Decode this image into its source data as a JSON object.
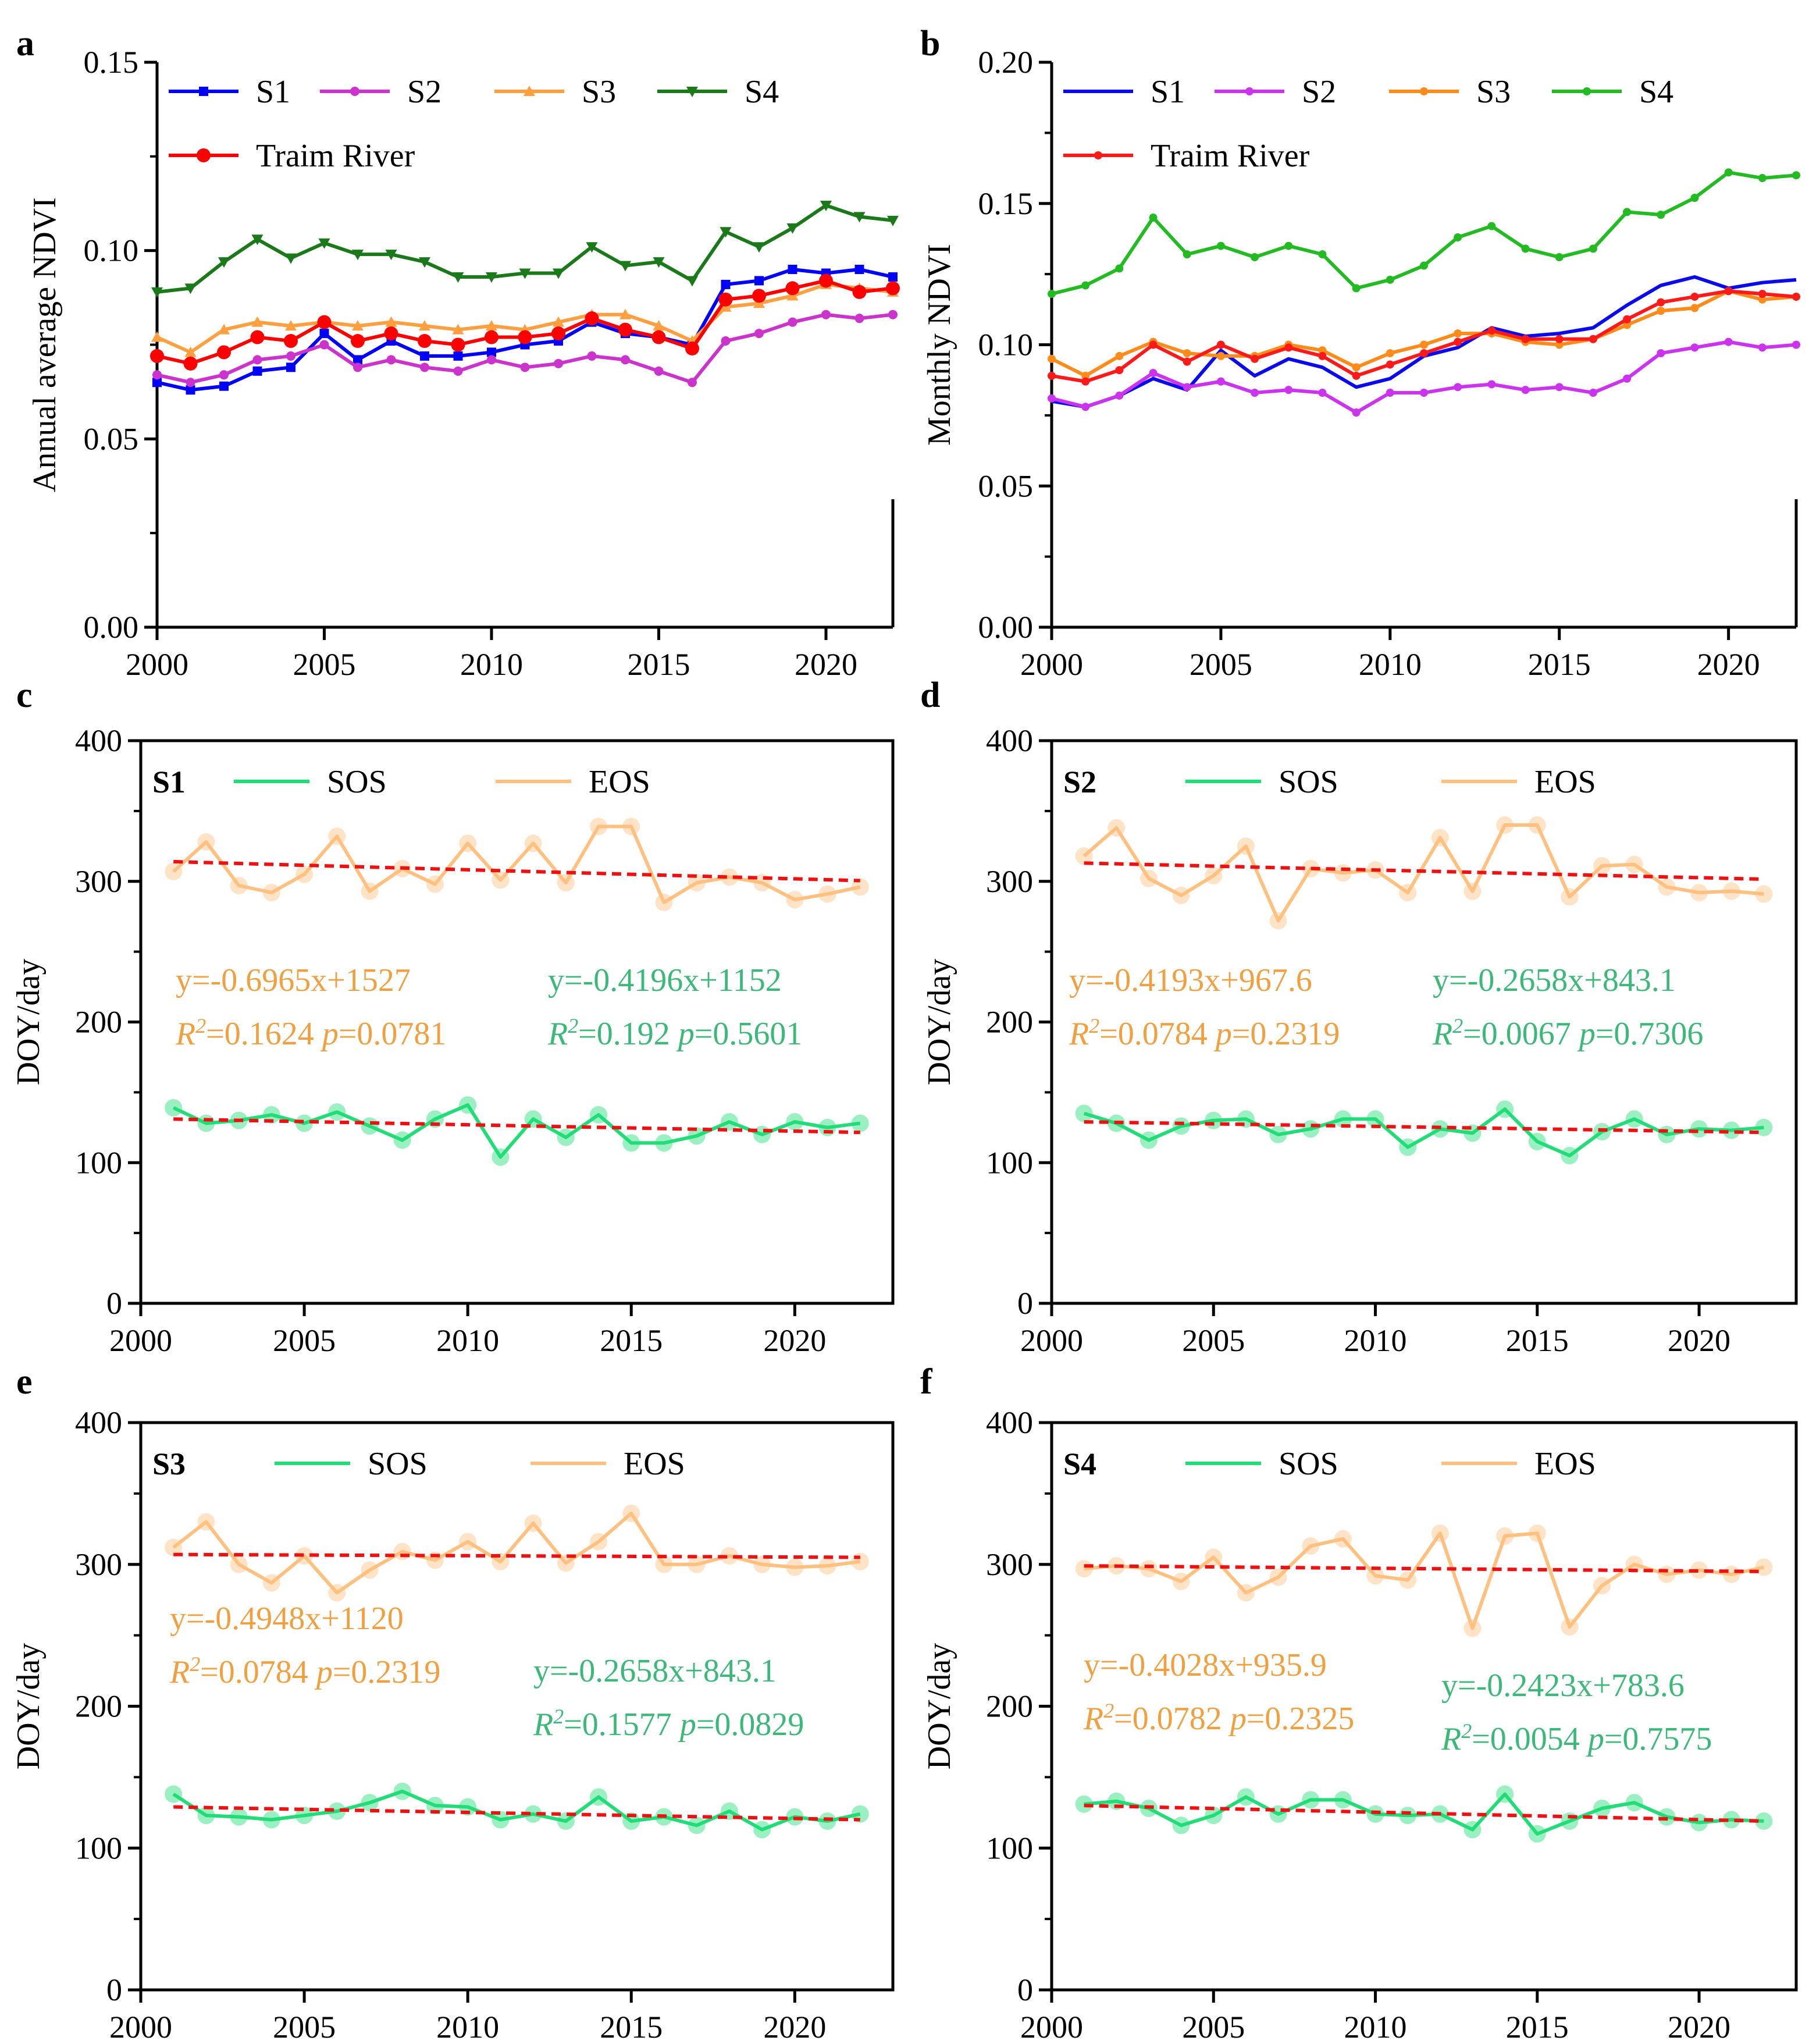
{
  "figure": {
    "panel_letters": [
      "a",
      "b",
      "c",
      "d",
      "e",
      "f"
    ]
  },
  "chart_data": [
    {
      "id": "a",
      "type": "line",
      "ylabel": "Annual average NDVI",
      "xlabel": "",
      "xlim": [
        2000,
        2022
      ],
      "ylim": [
        0.0,
        0.15
      ],
      "xticks": [
        2000,
        2005,
        2010,
        2015,
        2020
      ],
      "yticks": [
        0.0,
        0.05,
        0.1,
        0.15
      ],
      "ytick_labels": [
        "0.00",
        "0.05",
        "0.10",
        "0.15"
      ],
      "x": [
        2000,
        2001,
        2002,
        2003,
        2004,
        2005,
        2006,
        2007,
        2008,
        2009,
        2010,
        2011,
        2012,
        2013,
        2014,
        2015,
        2016,
        2017,
        2018,
        2019,
        2020,
        2021,
        2022
      ],
      "series": [
        {
          "name": "S1",
          "color": "#0000ff",
          "marker": "square",
          "values": [
            0.065,
            0.063,
            0.064,
            0.068,
            0.069,
            0.078,
            0.071,
            0.076,
            0.072,
            0.072,
            0.073,
            0.075,
            0.076,
            0.081,
            0.078,
            0.077,
            0.075,
            0.091,
            0.092,
            0.095,
            0.094,
            0.095,
            0.093
          ]
        },
        {
          "name": "S2",
          "color": "#cc33cc",
          "marker": "circle",
          "values": [
            0.067,
            0.065,
            0.067,
            0.071,
            0.072,
            0.075,
            0.069,
            0.071,
            0.069,
            0.068,
            0.071,
            0.069,
            0.07,
            0.072,
            0.071,
            0.068,
            0.065,
            0.076,
            0.078,
            0.081,
            0.083,
            0.082,
            0.083
          ]
        },
        {
          "name": "S3",
          "color": "#ffa040",
          "marker": "triangle-up",
          "values": [
            0.077,
            0.073,
            0.079,
            0.081,
            0.08,
            0.081,
            0.08,
            0.081,
            0.08,
            0.079,
            0.08,
            0.079,
            0.081,
            0.083,
            0.083,
            0.08,
            0.076,
            0.085,
            0.086,
            0.088,
            0.091,
            0.09,
            0.089
          ]
        },
        {
          "name": "S4",
          "color": "#1a7a1a",
          "marker": "triangle-down",
          "values": [
            0.089,
            0.09,
            0.097,
            0.103,
            0.098,
            0.102,
            0.099,
            0.099,
            0.097,
            0.093,
            0.093,
            0.094,
            0.094,
            0.101,
            0.096,
            0.097,
            0.092,
            0.105,
            0.101,
            0.106,
            0.112,
            0.109,
            0.108
          ]
        },
        {
          "name": "Traim River",
          "color": "#ff0000",
          "marker": "circle-big",
          "values": [
            0.072,
            0.07,
            0.073,
            0.077,
            0.076,
            0.081,
            0.076,
            0.078,
            0.076,
            0.075,
            0.077,
            0.077,
            0.078,
            0.082,
            0.079,
            0.077,
            0.074,
            0.087,
            0.088,
            0.09,
            0.092,
            0.089,
            0.09
          ]
        }
      ],
      "legend_rows": [
        [
          "S1",
          "S2",
          "S3",
          "S4"
        ],
        [
          "Traim River"
        ]
      ]
    },
    {
      "id": "b",
      "type": "line",
      "ylabel": "Monthly NDVI",
      "xlabel": "",
      "xlim": [
        2000,
        2022
      ],
      "ylim": [
        0.0,
        0.2
      ],
      "xticks": [
        2000,
        2005,
        2010,
        2015,
        2020
      ],
      "yticks": [
        0.0,
        0.05,
        0.1,
        0.15,
        0.2
      ],
      "ytick_labels": [
        "0.00",
        "0.05",
        "0.10",
        "0.15",
        "0.20"
      ],
      "x": [
        2000,
        2001,
        2002,
        2003,
        2004,
        2005,
        2006,
        2007,
        2008,
        2009,
        2010,
        2011,
        2012,
        2013,
        2014,
        2015,
        2016,
        2017,
        2018,
        2019,
        2020,
        2021,
        2022
      ],
      "series": [
        {
          "name": "S1",
          "color": "#0a0aee",
          "marker": "none",
          "values": [
            0.08,
            0.078,
            0.082,
            0.088,
            0.084,
            0.098,
            0.089,
            0.095,
            0.092,
            0.085,
            0.088,
            0.096,
            0.099,
            0.106,
            0.103,
            0.104,
            0.106,
            0.114,
            0.121,
            0.124,
            0.12,
            0.122,
            0.123
          ]
        },
        {
          "name": "S2",
          "color": "#cc33ee",
          "marker": "dot",
          "values": [
            0.081,
            0.078,
            0.082,
            0.09,
            0.085,
            0.087,
            0.083,
            0.084,
            0.083,
            0.076,
            0.083,
            0.083,
            0.085,
            0.086,
            0.084,
            0.085,
            0.083,
            0.088,
            0.097,
            0.099,
            0.101,
            0.099,
            0.1
          ]
        },
        {
          "name": "S3",
          "color": "#ff8c1a",
          "marker": "dot",
          "values": [
            0.095,
            0.089,
            0.096,
            0.101,
            0.097,
            0.096,
            0.096,
            0.1,
            0.098,
            0.092,
            0.097,
            0.1,
            0.104,
            0.104,
            0.101,
            0.1,
            0.102,
            0.107,
            0.112,
            0.113,
            0.119,
            0.116,
            0.117
          ]
        },
        {
          "name": "S4",
          "color": "#22bb22",
          "marker": "dot",
          "values": [
            0.118,
            0.121,
            0.127,
            0.145,
            0.132,
            0.135,
            0.131,
            0.135,
            0.132,
            0.12,
            0.123,
            0.128,
            0.138,
            0.142,
            0.134,
            0.131,
            0.134,
            0.147,
            0.146,
            0.152,
            0.161,
            0.159,
            0.16
          ]
        },
        {
          "name": "Traim River",
          "color": "#ff1a1a",
          "marker": "dot",
          "values": [
            0.089,
            0.087,
            0.091,
            0.1,
            0.094,
            0.1,
            0.095,
            0.099,
            0.096,
            0.089,
            0.093,
            0.097,
            0.101,
            0.105,
            0.102,
            0.102,
            0.102,
            0.109,
            0.115,
            0.117,
            0.119,
            0.118,
            0.117
          ]
        }
      ],
      "legend_rows": [
        [
          "S1",
          "S2",
          "S3",
          "S4"
        ],
        [
          "Traim River"
        ]
      ]
    },
    {
      "id": "c",
      "type": "line",
      "tag": "S1",
      "ylabel": "DOY/day",
      "xlabel": "",
      "xlim": [
        2000,
        2023
      ],
      "ylim": [
        0,
        400
      ],
      "xticks": [
        2000,
        2005,
        2010,
        2015,
        2020
      ],
      "yticks": [
        0,
        100,
        200,
        300,
        400
      ],
      "ytick_labels": [
        "0",
        "100",
        "200",
        "300",
        "400"
      ],
      "x": [
        2001,
        2002,
        2003,
        2004,
        2005,
        2006,
        2007,
        2008,
        2009,
        2010,
        2011,
        2012,
        2013,
        2014,
        2015,
        2016,
        2017,
        2018,
        2019,
        2020,
        2021,
        2022
      ],
      "series": [
        {
          "name": "SOS",
          "color": "#22dd77",
          "values": [
            139,
            128,
            130,
            134,
            128,
            136,
            126,
            116,
            131,
            141,
            104,
            131,
            118,
            134,
            114,
            114,
            119,
            129,
            120,
            129,
            125,
            128
          ],
          "trend": [
            131,
            121.5
          ]
        },
        {
          "name": "EOS",
          "color": "#ffc080",
          "values": [
            307,
            328,
            297,
            292,
            305,
            332,
            293,
            309,
            298,
            327,
            301,
            327,
            299,
            339,
            339,
            285,
            299,
            303,
            299,
            287,
            291,
            296
          ],
          "trend": [
            314,
            300.5
          ]
        }
      ],
      "annotations": {
        "eos_eq": "y=-0.6965x+1527",
        "eos_r2": "=0.1624",
        "eos_p": "=0.0781",
        "sos_eq": "y=-0.4196x+1152",
        "sos_r2": "=0.192",
        "sos_p": "=0.5601",
        "r_letter": "R",
        "r_sup": "2",
        "p_letter": "p"
      }
    },
    {
      "id": "d",
      "type": "line",
      "tag": "S2",
      "ylabel": "DOY/day",
      "xlabel": "",
      "xlim": [
        2000,
        2023
      ],
      "ylim": [
        0,
        400
      ],
      "xticks": [
        2000,
        2005,
        2010,
        2015,
        2020
      ],
      "yticks": [
        0,
        100,
        200,
        300,
        400
      ],
      "ytick_labels": [
        "0",
        "100",
        "200",
        "300",
        "400"
      ],
      "x": [
        2001,
        2002,
        2003,
        2004,
        2005,
        2006,
        2007,
        2008,
        2009,
        2010,
        2011,
        2012,
        2013,
        2014,
        2015,
        2016,
        2017,
        2018,
        2019,
        2020,
        2021,
        2022
      ],
      "series": [
        {
          "name": "SOS",
          "color": "#22dd77",
          "values": [
            135,
            128,
            116,
            126,
            130,
            131,
            120,
            124,
            131,
            131,
            111,
            124,
            121,
            138,
            115,
            105,
            122,
            131,
            120,
            124,
            123,
            125
          ],
          "trend": [
            129,
            121.5
          ]
        },
        {
          "name": "EOS",
          "color": "#ffc080",
          "values": [
            318,
            338,
            302,
            290,
            304,
            325,
            272,
            309,
            306,
            308,
            292,
            331,
            293,
            340,
            340,
            289,
            311,
            312,
            296,
            292,
            293,
            291
          ],
          "trend": [
            313,
            301.5
          ]
        }
      ],
      "annotations": {
        "eos_eq": "y=-0.4193x+967.6",
        "eos_r2": "=0.0784",
        "eos_p": "=0.2319",
        "sos_eq": "y=-0.2658x+843.1",
        "sos_r2": "=0.0067",
        "sos_p": "=0.7306",
        "r_letter": "R",
        "r_sup": "2",
        "p_letter": "p"
      }
    },
    {
      "id": "e",
      "type": "line",
      "tag": "S3",
      "ylabel": "DOY/day",
      "xlabel": "",
      "xlim": [
        2000,
        2023
      ],
      "ylim": [
        0,
        400
      ],
      "xticks": [
        2000,
        2005,
        2010,
        2015,
        2020
      ],
      "yticks": [
        0,
        100,
        200,
        300,
        400
      ],
      "ytick_labels": [
        "0",
        "100",
        "200",
        "300",
        "400"
      ],
      "x": [
        2001,
        2002,
        2003,
        2004,
        2005,
        2006,
        2007,
        2008,
        2009,
        2010,
        2011,
        2012,
        2013,
        2014,
        2015,
        2016,
        2017,
        2018,
        2019,
        2020,
        2021,
        2022
      ],
      "series": [
        {
          "name": "SOS",
          "color": "#22dd77",
          "values": [
            138,
            123,
            122,
            120,
            123,
            126,
            132,
            140,
            130,
            129,
            120,
            124,
            119,
            136,
            119,
            122,
            116,
            126,
            113,
            122,
            119,
            124
          ],
          "trend": [
            129,
            120
          ]
        },
        {
          "name": "EOS",
          "color": "#ffc080",
          "values": [
            312,
            330,
            300,
            287,
            306,
            280,
            296,
            309,
            303,
            316,
            302,
            329,
            301,
            316,
            336,
            300,
            300,
            306,
            300,
            298,
            299,
            302
          ],
          "trend": [
            307,
            305
          ]
        }
      ],
      "annotations": {
        "eos_eq": "y=-0.4948x+1120",
        "eos_r2": "=0.0784",
        "eos_p": "=0.2319",
        "sos_eq": "y=-0.2658x+843.1",
        "sos_r2": "=0.1577",
        "sos_p": "=0.0829",
        "r_letter": "R",
        "r_sup": "2",
        "p_letter": "p"
      }
    },
    {
      "id": "f",
      "type": "line",
      "tag": "S4",
      "ylabel": "DOY/day",
      "xlabel": "",
      "xlim": [
        2000,
        2023
      ],
      "ylim": [
        0,
        400
      ],
      "xticks": [
        2000,
        2005,
        2010,
        2015,
        2020
      ],
      "yticks": [
        0,
        100,
        200,
        300,
        400
      ],
      "ytick_labels": [
        "0",
        "100",
        "200",
        "300",
        "400"
      ],
      "x": [
        2001,
        2002,
        2003,
        2004,
        2005,
        2006,
        2007,
        2008,
        2009,
        2010,
        2011,
        2012,
        2013,
        2014,
        2015,
        2016,
        2017,
        2018,
        2019,
        2020,
        2021,
        2022
      ],
      "series": [
        {
          "name": "SOS",
          "color": "#22dd77",
          "values": [
            131,
            133,
            128,
            116,
            123,
            136,
            124,
            134,
            134,
            124,
            123,
            124,
            113,
            138,
            110,
            119,
            128,
            132,
            122,
            118,
            120,
            119
          ],
          "trend": [
            130,
            119
          ]
        },
        {
          "name": "EOS",
          "color": "#ffc080",
          "values": [
            297,
            299,
            297,
            288,
            305,
            280,
            291,
            313,
            318,
            292,
            289,
            322,
            255,
            320,
            322,
            256,
            285,
            300,
            293,
            296,
            293,
            298
          ],
          "trend": [
            299,
            295
          ]
        }
      ],
      "annotations": {
        "eos_eq": "y=-0.4028x+935.9",
        "eos_r2": "=0.0782",
        "eos_p": "=0.2325",
        "sos_eq": "y=-0.2423x+783.6",
        "sos_r2": "=0.0054",
        "sos_p": "=0.7575",
        "r_letter": "R",
        "r_sup": "2",
        "p_letter": "p"
      }
    }
  ]
}
